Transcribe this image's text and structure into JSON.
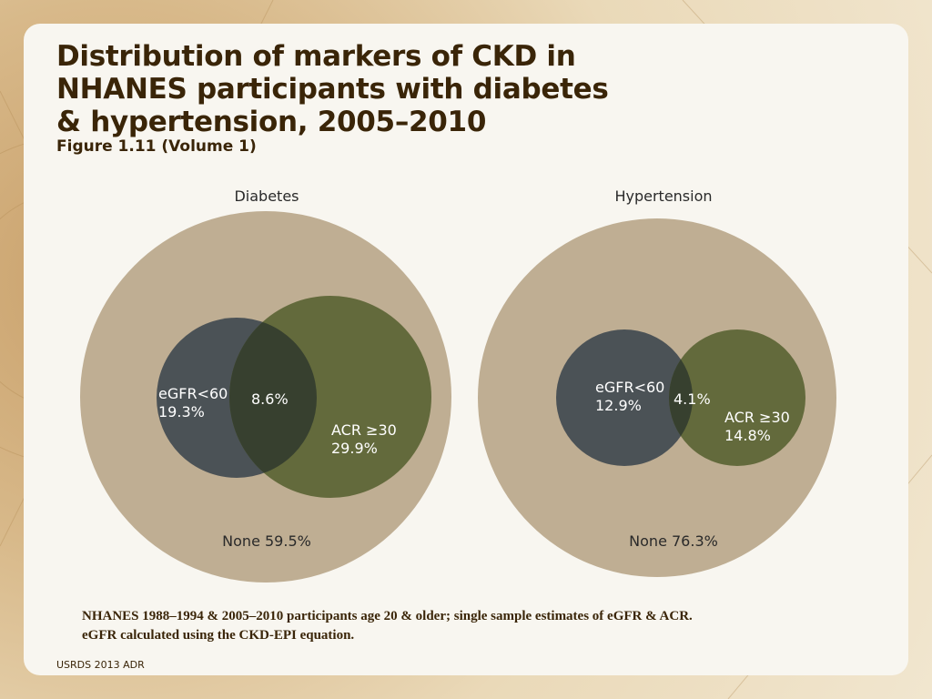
{
  "title_lines": [
    "Distribution of markers of CKD in",
    "NHANES participants with diabetes",
    "& hypertension, 2005–2010"
  ],
  "subtitle": "Figure 1.11 (Volume 1)",
  "colors": {
    "outer": "#bfae93",
    "egfr": "#4b5256",
    "acr": "#636a3c",
    "overlap": "#37402f",
    "label": "#ffffff",
    "dark_text": "#2a2a2a"
  },
  "chart_data": [
    {
      "type": "venn",
      "title": "Diabetes",
      "sets": [
        {
          "name": "eGFR<60",
          "value": "19.3%"
        },
        {
          "name": "ACR ≥30",
          "value": "29.9%"
        }
      ],
      "intersection": "8.6%",
      "none_label": "None 59.5%"
    },
    {
      "type": "venn",
      "title": "Hypertension",
      "sets": [
        {
          "name": "eGFR<60",
          "value": "12.9%"
        },
        {
          "name": "ACR ≥30",
          "value": "14.8%"
        }
      ],
      "intersection": "4.1%",
      "none_label": "None 76.3%"
    }
  ],
  "note_lines": [
    "NHANES 1988–1994 & 2005–2010 participants age 20 & older; single sample estimates of eGFR & ACR.",
    "eGFR calculated using the CKD-EPI equation."
  ],
  "footer": "USRDS 2013 ADR"
}
